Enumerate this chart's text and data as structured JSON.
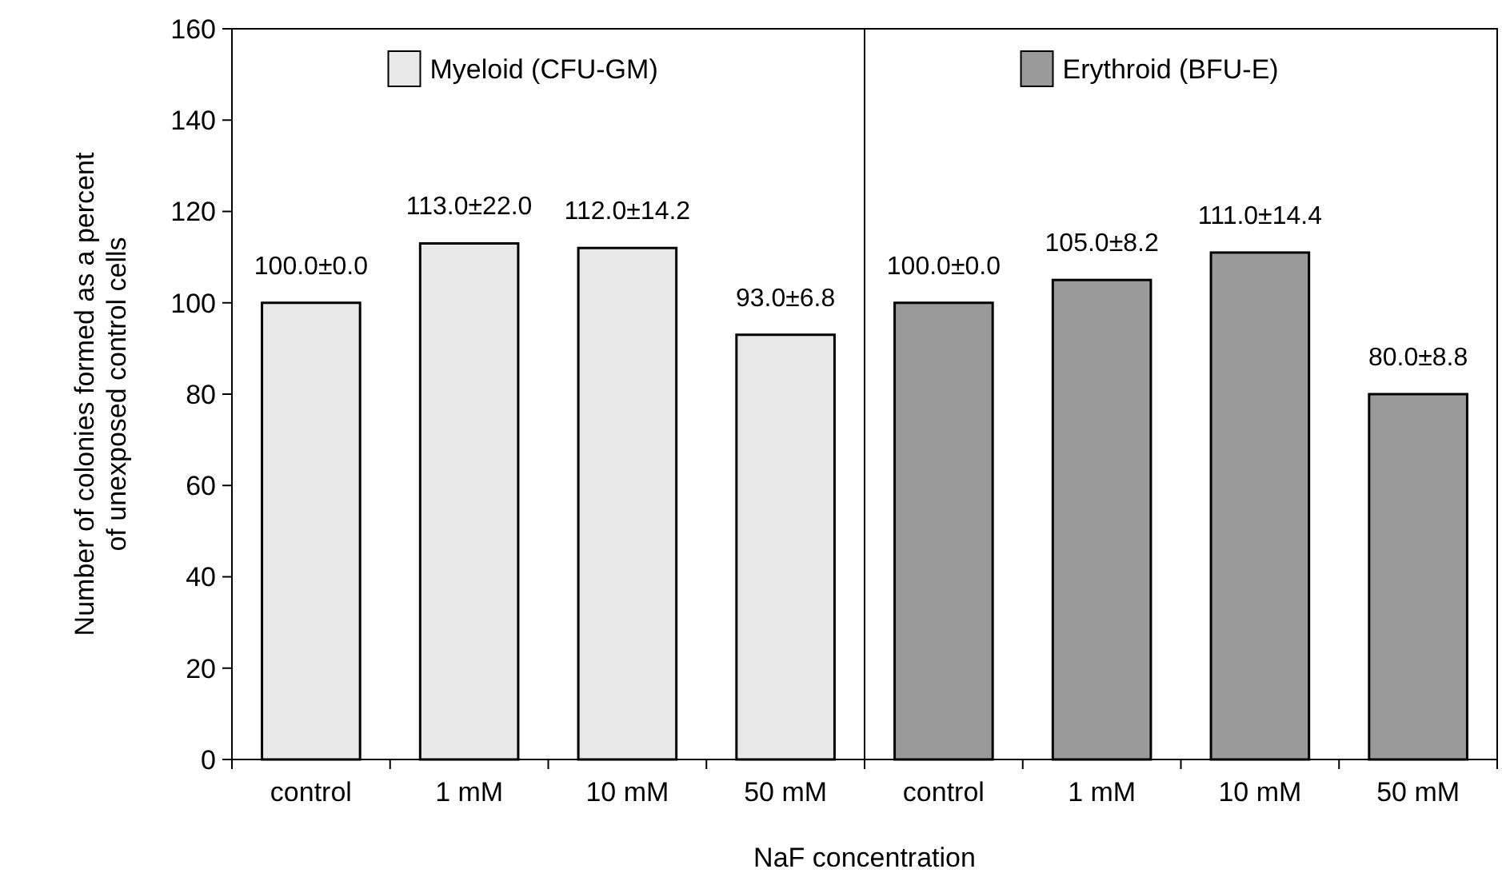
{
  "chart_data": {
    "type": "bar",
    "xlabel": "NaF concentration",
    "ylabel": "Number of colonies formed as a percent of unexposed control cells",
    "categories": [
      "control",
      "1 mM",
      "10 mM",
      "50 mM",
      "control",
      "1 mM",
      "10 mM",
      "50 mM"
    ],
    "series": [
      {
        "name": "Myeloid (CFU-GM)",
        "color": "#e8e8e8",
        "values": [
          100,
          113,
          112,
          93,
          null,
          null,
          null,
          null
        ],
        "value_labels": [
          "100.0±0.0",
          "113.0±22.0",
          "112.0±14.2",
          "93.0±6.8",
          null,
          null,
          null,
          null
        ]
      },
      {
        "name": "Erythroid (BFU-E)",
        "color": "#9a9a9a",
        "values": [
          null,
          null,
          null,
          null,
          100,
          105,
          111,
          80
        ],
        "value_labels": [
          null,
          null,
          null,
          null,
          "100.0±0.0",
          "105.0±8.2",
          "111.0±14.4",
          "80.0±8.8"
        ]
      }
    ],
    "ylim": [
      0,
      160
    ],
    "yticks": [
      0,
      20,
      40,
      60,
      80,
      100,
      120,
      140,
      160
    ],
    "grid": false,
    "legend": "top"
  }
}
